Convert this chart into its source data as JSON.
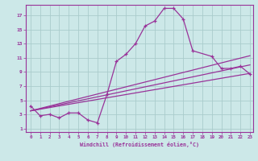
{
  "xlabel": "Windchill (Refroidissement éolien,°C)",
  "background_color": "#cce8e8",
  "line_color": "#993399",
  "grid_color": "#aacccc",
  "x_min": -0.5,
  "x_max": 23.3,
  "y_min": 0.5,
  "y_max": 18.5,
  "yticks": [
    1,
    3,
    5,
    7,
    9,
    11,
    13,
    15,
    17
  ],
  "xticks": [
    0,
    1,
    2,
    3,
    4,
    5,
    6,
    7,
    8,
    9,
    10,
    11,
    12,
    13,
    14,
    15,
    16,
    17,
    18,
    19,
    20,
    21,
    22,
    23
  ],
  "main_x": [
    0,
    1,
    2,
    3,
    4,
    5,
    6,
    7,
    8,
    9,
    10,
    11,
    12,
    13,
    14,
    15,
    16,
    17,
    19,
    20,
    21,
    22,
    23
  ],
  "main_y": [
    4.2,
    2.8,
    3.0,
    2.5,
    3.2,
    3.2,
    2.2,
    1.8,
    5.8,
    10.5,
    11.5,
    13.0,
    15.5,
    16.2,
    18.0,
    18.0,
    16.5,
    12.0,
    11.2,
    9.5,
    9.5,
    9.8,
    8.7
  ],
  "line1_x": [
    0,
    23
  ],
  "line1_y": [
    3.5,
    8.8
  ],
  "line2_x": [
    0,
    23
  ],
  "line2_y": [
    3.5,
    10.0
  ],
  "line3_x": [
    0,
    23
  ],
  "line3_y": [
    3.5,
    11.3
  ]
}
